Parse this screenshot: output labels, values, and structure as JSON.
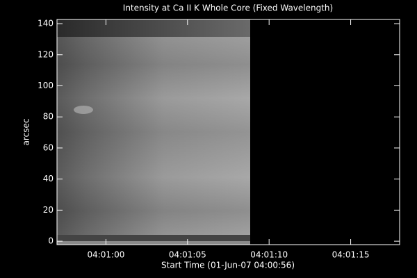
{
  "chart_data": {
    "type": "image",
    "title": "Intensity at Ca II K Whole Core (Fixed Wavelength)",
    "x_label": "Start Time (01-Jun-07 04:00:56)",
    "y_label": "arcsec",
    "xlim": [
      57,
      78
    ],
    "xticks": [
      {
        "value": 60,
        "label": "04:01:00"
      },
      {
        "value": 65,
        "label": "04:01:05"
      },
      {
        "value": 70,
        "label": "04:01:10"
      },
      {
        "value": 75,
        "label": "04:01:15"
      }
    ],
    "ylim": [
      -2.2,
      142.7
    ],
    "yticks": [
      0,
      20,
      40,
      60,
      80,
      100,
      120,
      140
    ]
  }
}
